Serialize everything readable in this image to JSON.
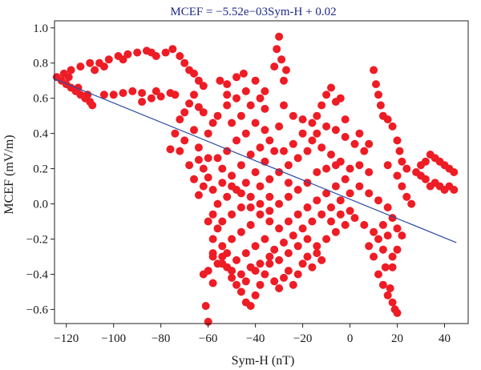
{
  "chart_data": {
    "type": "scatter",
    "title": "MCEF = −5.52e−03Sym-H + 0.02",
    "xlabel": "Sym-H (nT)",
    "ylabel": "MCEF (mV/m)",
    "xlim": [
      -125,
      50
    ],
    "ylim": [
      -0.68,
      1.04
    ],
    "xticks": [
      -120,
      -100,
      -80,
      -60,
      -40,
      -20,
      0,
      20,
      40
    ],
    "yticks": [
      -0.6,
      -0.4,
      -0.2,
      0.0,
      0.2,
      0.4,
      0.6,
      0.8,
      1.0
    ],
    "xtick_labels": [
      "−120",
      "−100",
      "−80",
      "−60",
      "−40",
      "−20",
      "0",
      "20",
      "40"
    ],
    "ytick_labels": [
      "−0.6",
      "−0.4",
      "−0.2",
      "0.0",
      "0.2",
      "0.4",
      "0.6",
      "0.8",
      "1.0"
    ],
    "grid": false,
    "point_color": "#ee1c25",
    "line_color": "#2b4ba3",
    "series": [
      {
        "type": "scatter",
        "points": [
          [
            -124,
            0.72
          ],
          [
            -122,
            0.7
          ],
          [
            -120,
            0.68
          ],
          [
            -118,
            0.66
          ],
          [
            -116,
            0.64
          ],
          [
            -114,
            0.62
          ],
          [
            -112,
            0.6
          ],
          [
            -110,
            0.58
          ],
          [
            -109,
            0.56
          ],
          [
            -111,
            0.62
          ],
          [
            -115,
            0.66
          ],
          [
            -119,
            0.72
          ],
          [
            -121,
            0.74
          ],
          [
            -118,
            0.76
          ],
          [
            -114,
            0.78
          ],
          [
            -110,
            0.8
          ],
          [
            -106,
            0.8
          ],
          [
            -102,
            0.82
          ],
          [
            -98,
            0.84
          ],
          [
            -94,
            0.85
          ],
          [
            -90,
            0.86
          ],
          [
            -86,
            0.87
          ],
          [
            -84,
            0.86
          ],
          [
            -82,
            0.84
          ],
          [
            -78,
            0.86
          ],
          [
            -75,
            0.88
          ],
          [
            -96,
            0.82
          ],
          [
            -104,
            0.78
          ],
          [
            -108,
            0.76
          ],
          [
            -104,
            0.62
          ],
          [
            -100,
            0.62
          ],
          [
            -96,
            0.63
          ],
          [
            -92,
            0.64
          ],
          [
            -88,
            0.63
          ],
          [
            -84,
            0.6
          ],
          [
            -80,
            0.61
          ],
          [
            -76,
            0.63
          ],
          [
            -74,
            0.62
          ],
          [
            -88,
            0.58
          ],
          [
            -82,
            0.64
          ],
          [
            -72,
            0.84
          ],
          [
            -70,
            0.8
          ],
          [
            -68,
            0.76
          ],
          [
            -66,
            0.74
          ],
          [
            -64,
            0.7
          ],
          [
            -62,
            0.67
          ],
          [
            -66,
            0.62
          ],
          [
            -68,
            0.57
          ],
          [
            -70,
            0.52
          ],
          [
            -72,
            0.48
          ],
          [
            -74,
            0.4
          ],
          [
            -70,
            0.36
          ],
          [
            -72,
            0.3
          ],
          [
            -76,
            0.31
          ],
          [
            -66,
            0.42
          ],
          [
            -64,
            0.55
          ],
          [
            -64,
            0.25
          ],
          [
            -62,
            0.2
          ],
          [
            -60,
            0.15
          ],
          [
            -62,
            0.1
          ],
          [
            -64,
            0.05
          ],
          [
            -66,
            0.14
          ],
          [
            -68,
            0.22
          ],
          [
            -60,
            0.26
          ],
          [
            -62,
            -0.4
          ],
          [
            -61,
            -0.58
          ],
          [
            -60,
            -0.67
          ],
          [
            -58,
            -0.45
          ],
          [
            -56,
            -0.34
          ],
          [
            -58,
            -0.28
          ],
          [
            -54,
            -0.3
          ],
          [
            -52,
            -0.36
          ],
          [
            -50,
            -0.42
          ],
          [
            -48,
            -0.46
          ],
          [
            -46,
            -0.5
          ],
          [
            -44,
            -0.56
          ],
          [
            -42,
            -0.58
          ],
          [
            -40,
            -0.52
          ],
          [
            -44,
            -0.44
          ],
          [
            -40,
            -0.38
          ],
          [
            -38,
            -0.46
          ],
          [
            -36,
            -0.4
          ],
          [
            -34,
            -0.34
          ],
          [
            -32,
            -0.44
          ],
          [
            -30,
            -0.48
          ],
          [
            -28,
            -0.42
          ],
          [
            -26,
            -0.38
          ],
          [
            -24,
            -0.46
          ],
          [
            -22,
            -0.4
          ],
          [
            -20,
            -0.34
          ],
          [
            -18,
            -0.3
          ],
          [
            -16,
            -0.36
          ],
          [
            -14,
            -0.28
          ],
          [
            -12,
            -0.32
          ],
          [
            -30,
            0.95
          ],
          [
            -31,
            0.88
          ],
          [
            -29,
            0.82
          ],
          [
            -27,
            0.76
          ],
          [
            -32,
            0.78
          ],
          [
            -28,
            0.7
          ],
          [
            -10,
            0.62
          ],
          [
            -8,
            0.66
          ],
          [
            -6,
            0.58
          ],
          [
            -12,
            0.56
          ],
          [
            -4,
            0.6
          ],
          [
            -14,
            0.5
          ],
          [
            -16,
            0.46
          ],
          [
            -2,
            0.48
          ],
          [
            10,
            0.76
          ],
          [
            11,
            0.68
          ],
          [
            12,
            0.62
          ],
          [
            13,
            0.56
          ],
          [
            14,
            0.5
          ],
          [
            16,
            0.48
          ],
          [
            18,
            0.44
          ],
          [
            20,
            0.36
          ],
          [
            21,
            0.3
          ],
          [
            22,
            0.24
          ],
          [
            24,
            0.2
          ],
          [
            20,
            0.16
          ],
          [
            16,
            0.22
          ],
          [
            22,
            0.1
          ],
          [
            24,
            0.04
          ],
          [
            26,
            0.0
          ],
          [
            12,
            -0.4
          ],
          [
            14,
            -0.46
          ],
          [
            16,
            -0.52
          ],
          [
            18,
            -0.56
          ],
          [
            19,
            -0.6
          ],
          [
            20,
            -0.62
          ],
          [
            17,
            -0.48
          ],
          [
            15,
            -0.36
          ],
          [
            18,
            -0.3
          ],
          [
            10,
            -0.3
          ],
          [
            28,
            0.18
          ],
          [
            30,
            0.22
          ],
          [
            32,
            0.24
          ],
          [
            34,
            0.28
          ],
          [
            36,
            0.26
          ],
          [
            38,
            0.24
          ],
          [
            40,
            0.22
          ],
          [
            42,
            0.2
          ],
          [
            44,
            0.18
          ],
          [
            42,
            0.1
          ],
          [
            40,
            0.08
          ],
          [
            38,
            0.1
          ],
          [
            36,
            0.12
          ],
          [
            34,
            0.1
          ],
          [
            32,
            0.14
          ],
          [
            44,
            0.08
          ],
          [
            30,
            0.16
          ],
          [
            -55,
            0.7
          ],
          [
            -52,
            0.68
          ],
          [
            -48,
            0.72
          ],
          [
            -45,
            0.74
          ],
          [
            -40,
            0.7
          ],
          [
            -44,
            0.64
          ],
          [
            -48,
            0.6
          ],
          [
            -52,
            0.56
          ],
          [
            -56,
            0.5
          ],
          [
            -50,
            0.46
          ],
          [
            -46,
            0.5
          ],
          [
            -42,
            0.56
          ],
          [
            -38,
            0.6
          ],
          [
            -36,
            0.54
          ],
          [
            -40,
            0.46
          ],
          [
            -44,
            0.4
          ],
          [
            -48,
            0.36
          ],
          [
            -52,
            0.3
          ],
          [
            -56,
            0.26
          ],
          [
            -54,
            0.2
          ],
          [
            -50,
            0.16
          ],
          [
            -46,
            0.22
          ],
          [
            -42,
            0.28
          ],
          [
            -38,
            0.32
          ],
          [
            -34,
            0.36
          ],
          [
            -36,
            0.42
          ],
          [
            -30,
            0.44
          ],
          [
            -32,
            0.3
          ],
          [
            -36,
            0.24
          ],
          [
            -40,
            0.18
          ],
          [
            -44,
            0.12
          ],
          [
            -48,
            0.08
          ],
          [
            -52,
            0.04
          ],
          [
            -56,
            0.0
          ],
          [
            -58,
            -0.06
          ],
          [
            -54,
            -0.1
          ],
          [
            -50,
            -0.06
          ],
          [
            -46,
            -0.02
          ],
          [
            -42,
            0.04
          ],
          [
            -38,
            0.1
          ],
          [
            -34,
            0.14
          ],
          [
            -30,
            0.18
          ],
          [
            -26,
            0.22
          ],
          [
            -22,
            0.26
          ],
          [
            -18,
            0.3
          ],
          [
            -24,
            0.34
          ],
          [
            -28,
            0.3
          ],
          [
            -20,
            0.4
          ],
          [
            -16,
            0.36
          ],
          [
            -12,
            0.32
          ],
          [
            -8,
            0.28
          ],
          [
            -4,
            0.24
          ],
          [
            0,
            0.2
          ],
          [
            4,
            0.22
          ],
          [
            8,
            0.18
          ],
          [
            -2,
            0.14
          ],
          [
            -6,
            0.1
          ],
          [
            -10,
            0.06
          ],
          [
            -14,
            0.02
          ],
          [
            -18,
            -0.02
          ],
          [
            -22,
            -0.06
          ],
          [
            -26,
            -0.1
          ],
          [
            -30,
            -0.14
          ],
          [
            -34,
            -0.1
          ],
          [
            -38,
            -0.06
          ],
          [
            -42,
            -0.12
          ],
          [
            -46,
            -0.16
          ],
          [
            -50,
            -0.2
          ],
          [
            -54,
            -0.24
          ],
          [
            -58,
            -0.2
          ],
          [
            -56,
            -0.14
          ],
          [
            -52,
            -0.28
          ],
          [
            -48,
            -0.32
          ],
          [
            -44,
            -0.28
          ],
          [
            -40,
            -0.24
          ],
          [
            -36,
            -0.2
          ],
          [
            -32,
            -0.26
          ],
          [
            -28,
            -0.22
          ],
          [
            -24,
            -0.18
          ],
          [
            -20,
            -0.14
          ],
          [
            -16,
            -0.1
          ],
          [
            -12,
            -0.06
          ],
          [
            -8,
            -0.02
          ],
          [
            -4,
            0.02
          ],
          [
            0,
            0.06
          ],
          [
            4,
            0.1
          ],
          [
            8,
            0.06
          ],
          [
            12,
            0.02
          ],
          [
            16,
            -0.02
          ],
          [
            18,
            -0.08
          ],
          [
            14,
            -0.12
          ],
          [
            10,
            -0.16
          ],
          [
            6,
            -0.12
          ],
          [
            2,
            -0.08
          ],
          [
            -2,
            -0.12
          ],
          [
            -6,
            -0.16
          ],
          [
            -10,
            -0.2
          ],
          [
            -14,
            -0.24
          ],
          [
            -18,
            -0.2
          ],
          [
            -22,
            -0.24
          ],
          [
            -26,
            -0.28
          ],
          [
            -30,
            -0.32
          ],
          [
            -34,
            -0.3
          ],
          [
            -38,
            -0.34
          ],
          [
            -42,
            -0.36
          ],
          [
            -46,
            -0.4
          ],
          [
            -50,
            -0.38
          ],
          [
            -54,
            -0.34
          ],
          [
            6,
            0.3
          ],
          [
            2,
            0.34
          ],
          [
            -2,
            0.38
          ],
          [
            -6,
            0.42
          ],
          [
            -10,
            0.44
          ],
          [
            -14,
            0.4
          ],
          [
            -18,
            0.12
          ],
          [
            -22,
            0.08
          ],
          [
            -26,
            0.04
          ],
          [
            -30,
            0.0
          ],
          [
            -34,
            -0.04
          ],
          [
            -38,
            0.0
          ],
          [
            -42,
            -0.02
          ],
          [
            -46,
            0.06
          ],
          [
            -50,
            0.1
          ],
          [
            -54,
            0.12
          ],
          [
            -58,
            0.08
          ],
          [
            -60,
            -0.1
          ],
          [
            -58,
            -0.3
          ],
          [
            -60,
            -0.38
          ],
          [
            12,
            -0.2
          ],
          [
            16,
            -0.18
          ],
          [
            20,
            -0.14
          ],
          [
            14,
            -0.26
          ],
          [
            8,
            -0.24
          ],
          [
            20,
            -0.26
          ],
          [
            18,
            -0.36
          ],
          [
            -52,
            0.62
          ],
          [
            -36,
            0.64
          ],
          [
            -28,
            0.56
          ],
          [
            -24,
            0.5
          ],
          [
            -20,
            0.48
          ],
          [
            4,
            0.4
          ],
          [
            -34,
            0.04
          ],
          [
            -26,
            0.12
          ],
          [
            -14,
            0.18
          ],
          [
            -10,
            0.2
          ],
          [
            -6,
            0.22
          ],
          [
            8,
            0.34
          ],
          [
            -8,
            -0.1
          ],
          [
            0,
            -0.04
          ],
          [
            -4,
            -0.06
          ],
          [
            22,
            -0.18
          ],
          [
            -64,
            0.32
          ],
          [
            -60,
            0.4
          ],
          [
            -58,
            0.46
          ],
          [
            -62,
            0.52
          ]
        ]
      },
      {
        "type": "line",
        "x": [
          -125,
          45
        ],
        "y": [
          0.71,
          -0.22
        ]
      }
    ]
  }
}
